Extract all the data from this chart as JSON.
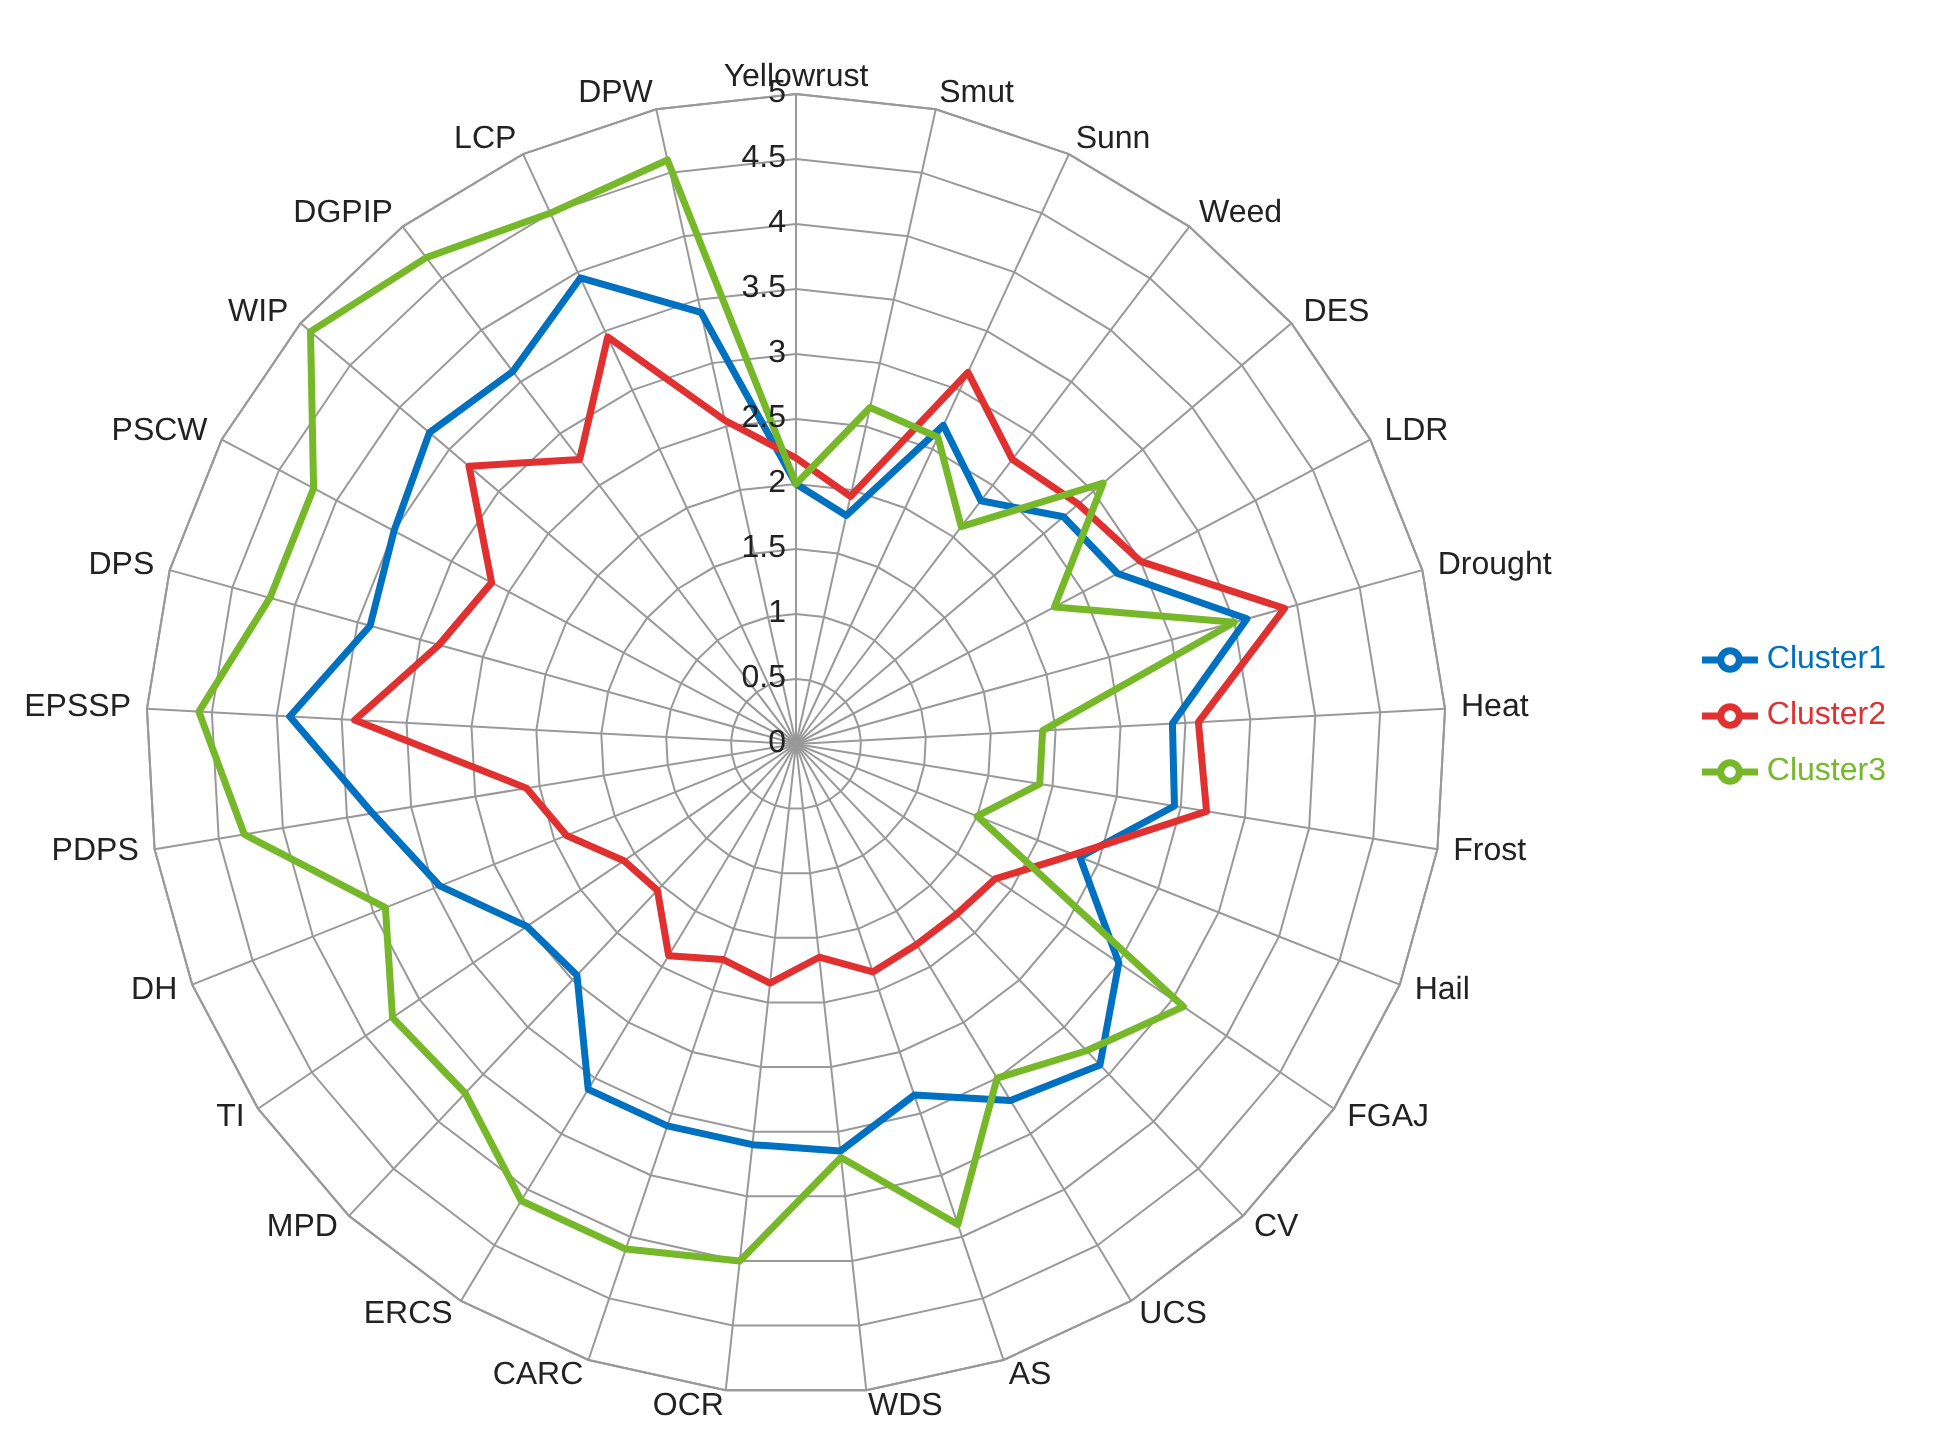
{
  "chart_data": {
    "type": "radar",
    "categories": [
      "Yellowrust",
      "Smut",
      "Sunn",
      "Weed",
      "DES",
      "LDR",
      "Drought",
      "Heat",
      "Frost",
      "Hail",
      "FGAJ",
      "CV",
      "UCS",
      "AS",
      "WDS",
      "OCR",
      "CARC",
      "ERCS",
      "MPD",
      "TI",
      "DH",
      "PDPS",
      "EPSSP",
      "DPS",
      "PSCW",
      "WIP",
      "DGPIP",
      "LCP",
      "DPW"
    ],
    "series": [
      {
        "name": "Cluster1",
        "color": "#0070c0",
        "values": [
          2.0,
          1.8,
          2.7,
          2.35,
          2.7,
          2.8,
          3.6,
          2.9,
          2.95,
          2.35,
          3.0,
          3.4,
          3.2,
          2.85,
          3.15,
          3.1,
          3.1,
          3.1,
          2.45,
          2.5,
          2.95,
          3.3,
          3.9,
          3.4,
          3.5,
          3.7,
          3.6,
          3.95,
          3.4
        ]
      },
      {
        "name": "Cluster2",
        "color": "#e03030",
        "values": [
          2.2,
          1.95,
          3.15,
          2.75,
          2.85,
          3.0,
          3.9,
          3.1,
          3.2,
          2.3,
          1.85,
          1.8,
          1.8,
          1.85,
          1.65,
          1.85,
          1.75,
          1.9,
          1.55,
          1.6,
          1.9,
          2.1,
          3.4,
          2.85,
          2.65,
          3.3,
          2.75,
          3.45,
          2.55
        ]
      },
      {
        "name": "Cluster3",
        "color": "#76b82a",
        "values": [
          2.0,
          2.65,
          2.6,
          2.1,
          3.1,
          2.25,
          3.5,
          1.9,
          1.9,
          1.5,
          3.6,
          3.25,
          3.0,
          3.9,
          3.2,
          4.0,
          4.1,
          4.1,
          3.7,
          3.75,
          3.4,
          4.3,
          4.6,
          4.2,
          4.2,
          4.9,
          4.7,
          4.5,
          4.6
        ]
      }
    ],
    "ylim": [
      0,
      5
    ],
    "yticks": [
      0,
      0.5,
      1,
      1.5,
      2,
      2.5,
      3,
      3.5,
      4,
      4.5,
      5
    ],
    "grid": true,
    "legend": "right",
    "marker": "none"
  }
}
